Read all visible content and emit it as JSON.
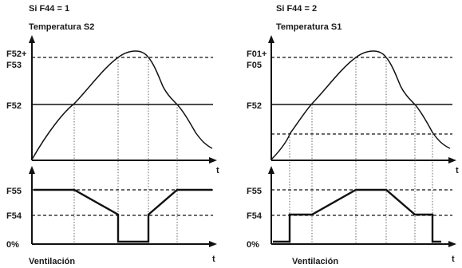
{
  "panels": [
    {
      "condition": "Si F44 = 1",
      "top_title": "Temperatura S2",
      "top_levels": [
        {
          "label_lines": [
            "F52+",
            "F53"
          ],
          "style": "dashed"
        },
        {
          "label_lines": [
            "F52"
          ],
          "style": "solid"
        }
      ],
      "time_label": "t",
      "bottom_levels": [
        {
          "label": "F55"
        },
        {
          "label": "F54"
        },
        {
          "label": "0%"
        }
      ],
      "bottom_title": "Ventilación",
      "bottom_time_label": "t"
    },
    {
      "condition": "Si F44 = 2",
      "top_title": "Temperatura S1",
      "top_levels": [
        {
          "label_lines": [
            "F01+",
            "F05"
          ],
          "style": "dashed"
        },
        {
          "label_lines": [
            "F52"
          ],
          "style": "solid"
        },
        {
          "label_lines": [],
          "style": "dashed"
        }
      ],
      "time_label": "t",
      "bottom_levels": [
        {
          "label": "F55"
        },
        {
          "label": "F54"
        },
        {
          "label": "0%"
        }
      ],
      "bottom_title": "Ventilación",
      "bottom_time_label": "t"
    }
  ]
}
